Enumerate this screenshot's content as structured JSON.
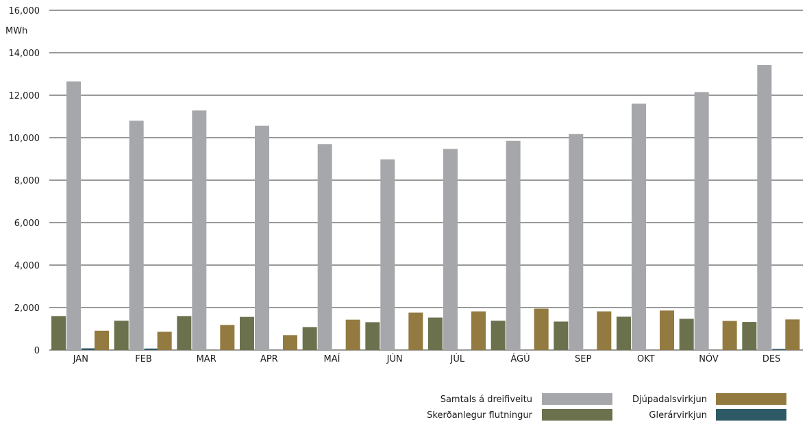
{
  "chart_data": {
    "type": "bar",
    "ylabel": "MWh",
    "ylim": [
      0,
      16000
    ],
    "yticks": [
      0,
      2000,
      4000,
      6000,
      8000,
      10000,
      12000,
      14000,
      16000
    ],
    "ytick_labels": [
      "0",
      "2,000",
      "4,000",
      "6,000",
      "8,000",
      "10,000",
      "12,000",
      "14,000",
      "16,000"
    ],
    "categories": [
      "JAN",
      "FEB",
      "MAR",
      "APR",
      "MAÍ",
      "JÚN",
      "JÚL",
      "ÁGÚ",
      "SEP",
      "OKT",
      "NÓV",
      "DES"
    ],
    "grid": true,
    "legend_position": "bottom-right",
    "series": [
      {
        "name": "Skerðanlegur flutningur",
        "color": "#6b714c",
        "values": [
          1600,
          1380,
          1600,
          1560,
          1080,
          1310,
          1530,
          1380,
          1340,
          1570,
          1470,
          1320
        ]
      },
      {
        "name": "Samtals á dreifiveitu",
        "color": "#a6a7ab",
        "values": [
          12650,
          10800,
          11280,
          10560,
          9700,
          8980,
          9470,
          9850,
          10170,
          11600,
          12150,
          13420
        ]
      },
      {
        "name": "Glerárvirkjun",
        "color": "#2e5a66",
        "values": [
          80,
          70,
          0,
          0,
          0,
          0,
          0,
          0,
          0,
          0,
          0,
          50
        ]
      },
      {
        "name": "Djúpadalsvirkjun",
        "color": "#937a40",
        "values": [
          910,
          860,
          1180,
          700,
          1430,
          1760,
          1820,
          1950,
          1820,
          1860,
          1370,
          1440
        ]
      }
    ],
    "legend_order": [
      "Samtals á dreifiveitu",
      "Djúpadalsvirkjun",
      "Skerðanlegur flutningur",
      "Glerárvirkjun"
    ]
  }
}
